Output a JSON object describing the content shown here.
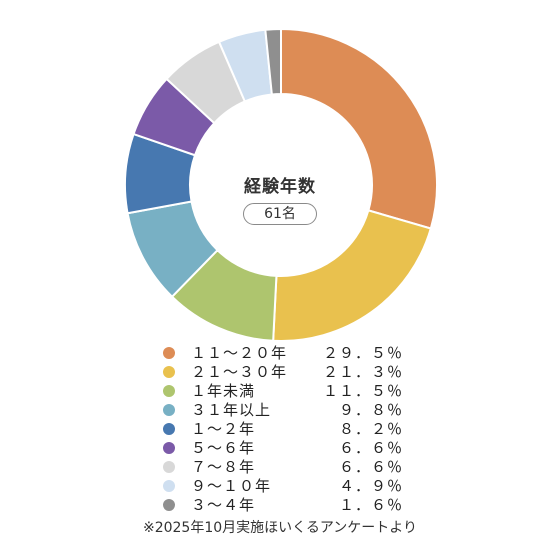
{
  "chart_data": {
    "type": "pie",
    "title": "経験年数",
    "center_badge": "61名",
    "categories": [
      "１１～２０年",
      "２１～３０年",
      "１年未満",
      "３１年以上",
      "１～２年",
      "５～６年",
      "７～８年",
      "９～１０年",
      "３～４年"
    ],
    "values": [
      29.5,
      21.3,
      11.5,
      9.8,
      8.2,
      6.6,
      6.6,
      4.9,
      1.6
    ],
    "value_labels": [
      "２９．５％",
      "２１．３％",
      "１１．５％",
      "９．８％",
      "８．２％",
      "６．６％",
      "６．６％",
      "４．９％",
      "１．６％"
    ],
    "colors": [
      "#dd8c55",
      "#e9c14e",
      "#aec56e",
      "#78b0c4",
      "#4778b0",
      "#7b5aa8",
      "#d8d8d8",
      "#cfdff0",
      "#8f8f8f"
    ],
    "unit": "%",
    "donut": true,
    "legend": "bottom"
  },
  "footer": {
    "source": "※2025年10月実施ほいくるアンケートより"
  }
}
